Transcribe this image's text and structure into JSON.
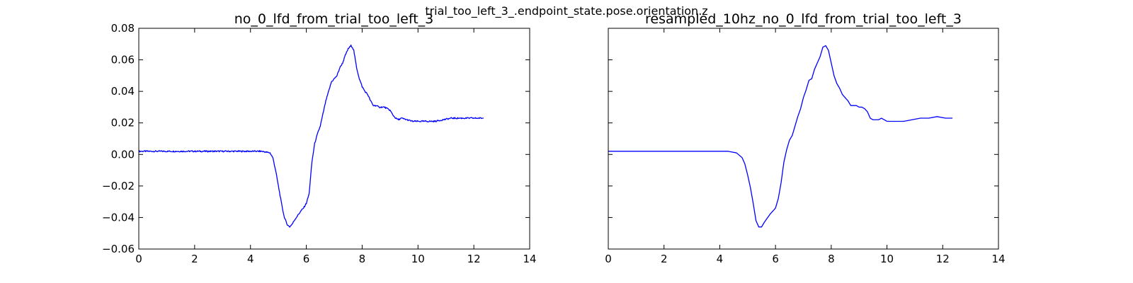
{
  "figure": {
    "suptitle": "trial_too_left_3_.endpoint_state.pose.orientation.z"
  },
  "chart_data": [
    {
      "type": "line",
      "title": "no_0_lfd_from_trial_too_left_3",
      "xlabel": "",
      "ylabel": "",
      "xlim": [
        0,
        14
      ],
      "ylim": [
        -0.06,
        0.08
      ],
      "xticks": [
        0,
        2,
        4,
        6,
        8,
        10,
        12,
        14
      ],
      "yticks": [
        -0.06,
        -0.04,
        -0.02,
        0.0,
        0.02,
        0.04,
        0.06,
        0.08
      ],
      "ytick_labels": [
        "−0.06",
        "−0.04",
        "−0.02",
        "0.00",
        "0.02",
        "0.04",
        "0.06",
        "0.08"
      ],
      "show_ytick_labels": true,
      "grid": false,
      "line_color": "#0000ff",
      "noisy": true,
      "series": [
        {
          "x": [
            0.0,
            0.5,
            1.0,
            1.5,
            2.0,
            2.5,
            3.0,
            3.5,
            4.0,
            4.4,
            4.7,
            4.8,
            4.9,
            5.0,
            5.1,
            5.2,
            5.3,
            5.4,
            5.5,
            5.6,
            5.8,
            5.9,
            6.0,
            6.1,
            6.2,
            6.3,
            6.4,
            6.5,
            6.6,
            6.7,
            6.8,
            6.9,
            7.0,
            7.1,
            7.2,
            7.3,
            7.4,
            7.5,
            7.6,
            7.65,
            7.7,
            7.8,
            7.9,
            8.0,
            8.1,
            8.2,
            8.3,
            8.4,
            8.5,
            8.6,
            8.8,
            9.0,
            9.1,
            9.2,
            9.3,
            9.4,
            9.6,
            9.8,
            10.0,
            10.3,
            10.6,
            10.9,
            11.2,
            11.5,
            11.8,
            12.1,
            12.35
          ],
          "y": [
            0.002,
            0.002,
            0.002,
            0.002,
            0.002,
            0.002,
            0.002,
            0.002,
            0.002,
            0.002,
            0.001,
            -0.002,
            -0.01,
            -0.02,
            -0.03,
            -0.039,
            -0.044,
            -0.046,
            -0.044,
            -0.041,
            -0.036,
            -0.034,
            -0.031,
            -0.025,
            -0.005,
            0.007,
            0.013,
            0.018,
            0.026,
            0.034,
            0.04,
            0.046,
            0.048,
            0.05,
            0.055,
            0.058,
            0.063,
            0.067,
            0.069,
            0.068,
            0.066,
            0.055,
            0.048,
            0.043,
            0.04,
            0.038,
            0.034,
            0.031,
            0.031,
            0.03,
            0.03,
            0.028,
            0.025,
            0.023,
            0.022,
            0.023,
            0.022,
            0.021,
            0.021,
            0.021,
            0.021,
            0.022,
            0.023,
            0.023,
            0.023,
            0.023,
            0.023
          ]
        }
      ]
    },
    {
      "type": "line",
      "title": "resampled_10hz_no_0_lfd_from_trial_too_left_3",
      "xlabel": "",
      "ylabel": "",
      "xlim": [
        0,
        14
      ],
      "ylim": [
        -0.06,
        0.08
      ],
      "xticks": [
        0,
        2,
        4,
        6,
        8,
        10,
        12,
        14
      ],
      "yticks": [
        -0.06,
        -0.04,
        -0.02,
        0.0,
        0.02,
        0.04,
        0.06,
        0.08
      ],
      "show_ytick_labels": false,
      "grid": false,
      "line_color": "#0000ff",
      "noisy": false,
      "series": [
        {
          "x": [
            0.0,
            0.3,
            0.6,
            1.0,
            1.5,
            2.0,
            2.5,
            3.0,
            3.5,
            4.0,
            4.3,
            4.6,
            4.8,
            4.9,
            5.0,
            5.1,
            5.2,
            5.3,
            5.4,
            5.5,
            5.6,
            5.8,
            5.9,
            6.0,
            6.1,
            6.2,
            6.3,
            6.4,
            6.5,
            6.6,
            6.7,
            6.8,
            6.9,
            7.0,
            7.1,
            7.2,
            7.3,
            7.4,
            7.5,
            7.6,
            7.7,
            7.8,
            7.9,
            8.0,
            8.1,
            8.2,
            8.3,
            8.4,
            8.5,
            8.6,
            8.7,
            8.8,
            8.9,
            9.0,
            9.1,
            9.2,
            9.3,
            9.4,
            9.5,
            9.6,
            9.7,
            9.8,
            10.0,
            10.3,
            10.6,
            10.9,
            11.2,
            11.5,
            11.8,
            12.1,
            12.35
          ],
          "y": [
            0.002,
            0.002,
            0.002,
            0.002,
            0.002,
            0.002,
            0.002,
            0.002,
            0.002,
            0.002,
            0.002,
            0.001,
            -0.002,
            -0.006,
            -0.013,
            -0.021,
            -0.031,
            -0.042,
            -0.046,
            -0.046,
            -0.043,
            -0.038,
            -0.036,
            -0.034,
            -0.028,
            -0.018,
            -0.005,
            0.003,
            0.009,
            0.012,
            0.018,
            0.024,
            0.029,
            0.036,
            0.041,
            0.047,
            0.048,
            0.054,
            0.058,
            0.062,
            0.068,
            0.069,
            0.066,
            0.058,
            0.05,
            0.045,
            0.042,
            0.038,
            0.036,
            0.034,
            0.031,
            0.031,
            0.031,
            0.03,
            0.03,
            0.029,
            0.027,
            0.023,
            0.022,
            0.022,
            0.022,
            0.023,
            0.021,
            0.021,
            0.021,
            0.022,
            0.023,
            0.023,
            0.024,
            0.023,
            0.023
          ]
        }
      ]
    }
  ]
}
